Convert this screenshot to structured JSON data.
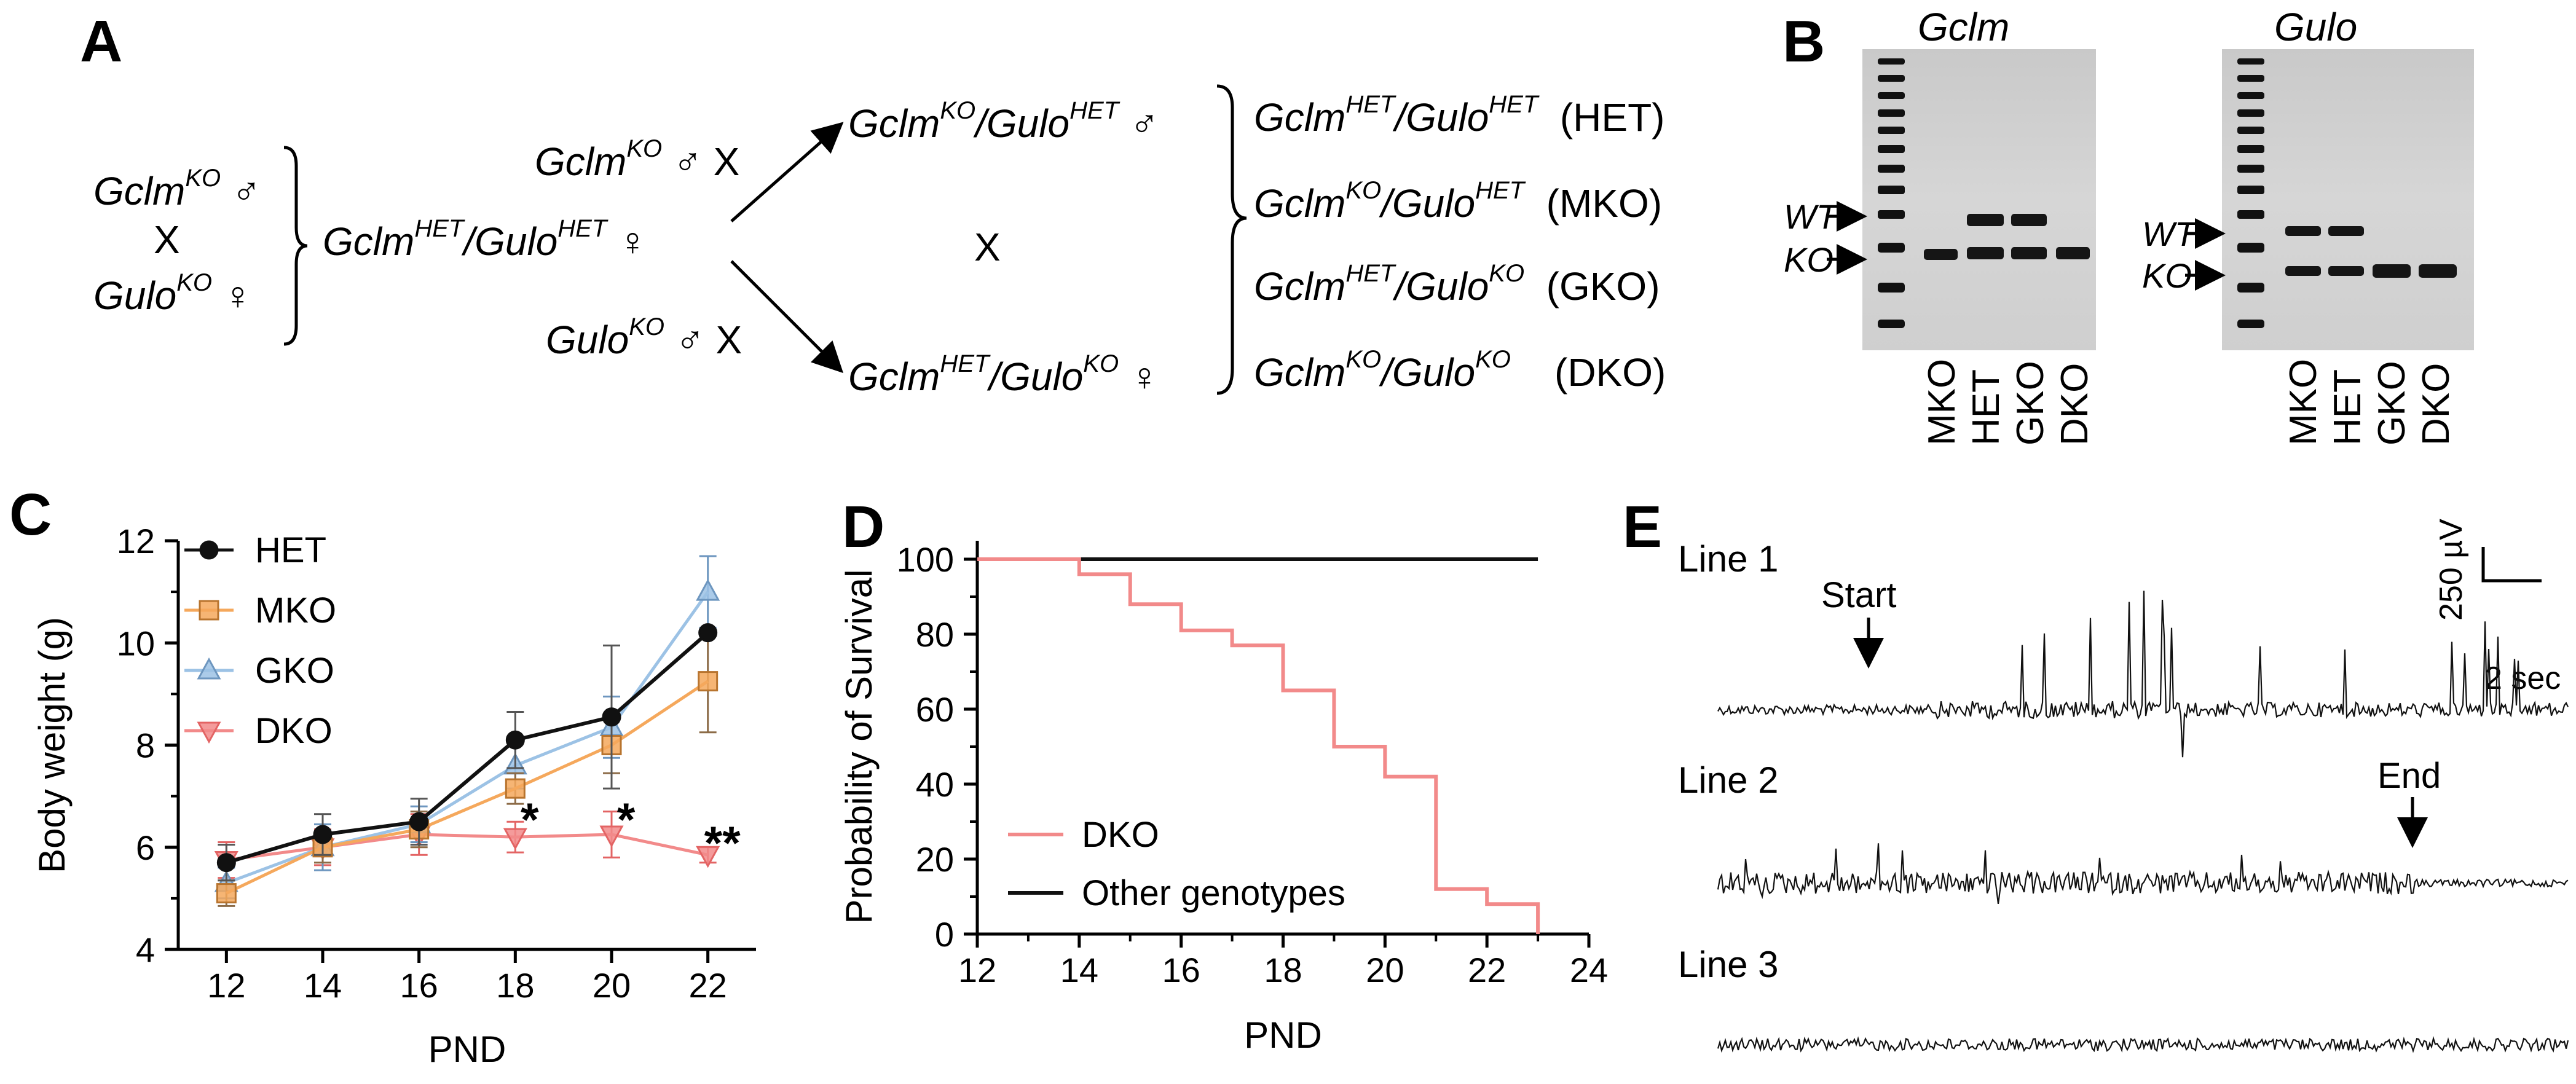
{
  "panels": {
    "a": {
      "letter": "A"
    },
    "b": {
      "letter": "B"
    },
    "c": {
      "letter": "C"
    },
    "d": {
      "letter": "D"
    },
    "e": {
      "letter": "E"
    }
  },
  "crosses": {
    "gene1": "Gclm",
    "gene2": "Gulo",
    "ko": "KO",
    "het": "HET",
    "male": "♂",
    "female": "♀",
    "cross_symbol": "X",
    "abbr_het": "(HET)",
    "abbr_mko": "(MKO)",
    "abbr_gko": "(GKO)",
    "abbr_dko": "(DKO)"
  },
  "gels": {
    "gel1_title": "Gclm",
    "gel2_title": "Gulo",
    "wt_label": "WT",
    "ko_label": "KO",
    "lanes": [
      "MKO",
      "HET",
      "GKO",
      "DKO"
    ]
  },
  "chart_data": [
    {
      "type": "line",
      "panel": "C",
      "xlabel": "PND",
      "ylabel": "Body weight (g)",
      "x": [
        12,
        14,
        16,
        18,
        20,
        22
      ],
      "xlim": [
        11,
        23
      ],
      "ylim": [
        4,
        12
      ],
      "xticks": [
        "12",
        "14",
        "16",
        "18",
        "20",
        "22"
      ],
      "yticks": [
        "4",
        "6",
        "8",
        "10",
        "12"
      ],
      "legend_position": "top-left",
      "series": [
        {
          "name": "HET",
          "color": "#111111",
          "marker": "circle",
          "values": [
            5.7,
            6.25,
            6.5,
            8.1,
            8.55,
            10.2
          ],
          "errors": [
            0.35,
            0.4,
            0.45,
            0.55,
            1.4,
            0.0
          ]
        },
        {
          "name": "MKO",
          "color": "#F5A85C",
          "marker": "square",
          "values": [
            5.1,
            6.0,
            6.35,
            7.15,
            8.0,
            9.25
          ],
          "errors": [
            0.25,
            0.3,
            0.35,
            0.3,
            0.55,
            1.0
          ]
        },
        {
          "name": "GKO",
          "color": "#9CC2E5",
          "marker": "triangle-up",
          "values": [
            5.3,
            6.0,
            6.45,
            7.6,
            8.35,
            11.0
          ],
          "errors": [
            0.3,
            0.45,
            0.35,
            0.45,
            0.6,
            0.7
          ]
        },
        {
          "name": "DKO",
          "color": "#F28A8A",
          "marker": "triangle-down",
          "values": [
            5.75,
            6.0,
            6.25,
            6.2,
            6.25,
            5.85
          ],
          "errors": [
            0.35,
            0.35,
            0.4,
            0.3,
            0.45,
            0.15
          ]
        }
      ],
      "annotations": [
        {
          "text": "*",
          "x": 18
        },
        {
          "text": "*",
          "x": 20
        },
        {
          "text": "**",
          "x": 22
        }
      ]
    },
    {
      "type": "line",
      "panel": "D",
      "xlabel": "PND",
      "ylabel": "Probability of Survival",
      "xlim": [
        12,
        24
      ],
      "ylim": [
        0,
        100
      ],
      "xticks": [
        "12",
        "14",
        "16",
        "18",
        "20",
        "22",
        "24"
      ],
      "yticks": [
        "0",
        "20",
        "40",
        "60",
        "80",
        "100"
      ],
      "legend_position": "bottom-left",
      "series": [
        {
          "name": "DKO",
          "color": "#F28A8A",
          "step": true,
          "x": [
            12,
            14,
            14,
            15,
            15,
            16,
            16,
            17,
            17,
            18,
            18,
            19,
            19,
            20,
            20,
            21,
            21,
            22,
            22,
            23,
            23
          ],
          "values": [
            100,
            100,
            96,
            96,
            88,
            88,
            81,
            81,
            77,
            77,
            65,
            65,
            50,
            50,
            42,
            42,
            12,
            12,
            8,
            8,
            0
          ]
        },
        {
          "name": "Other genotypes",
          "color": "#111111",
          "step": true,
          "x": [
            12,
            23
          ],
          "values": [
            100,
            100
          ]
        }
      ]
    }
  ],
  "eeg": {
    "line1": "Line 1",
    "line2": "Line 2",
    "line3": "Line 3",
    "start": "Start",
    "end": "End",
    "scale_v": "250 µV",
    "scale_t": "2 sec"
  }
}
